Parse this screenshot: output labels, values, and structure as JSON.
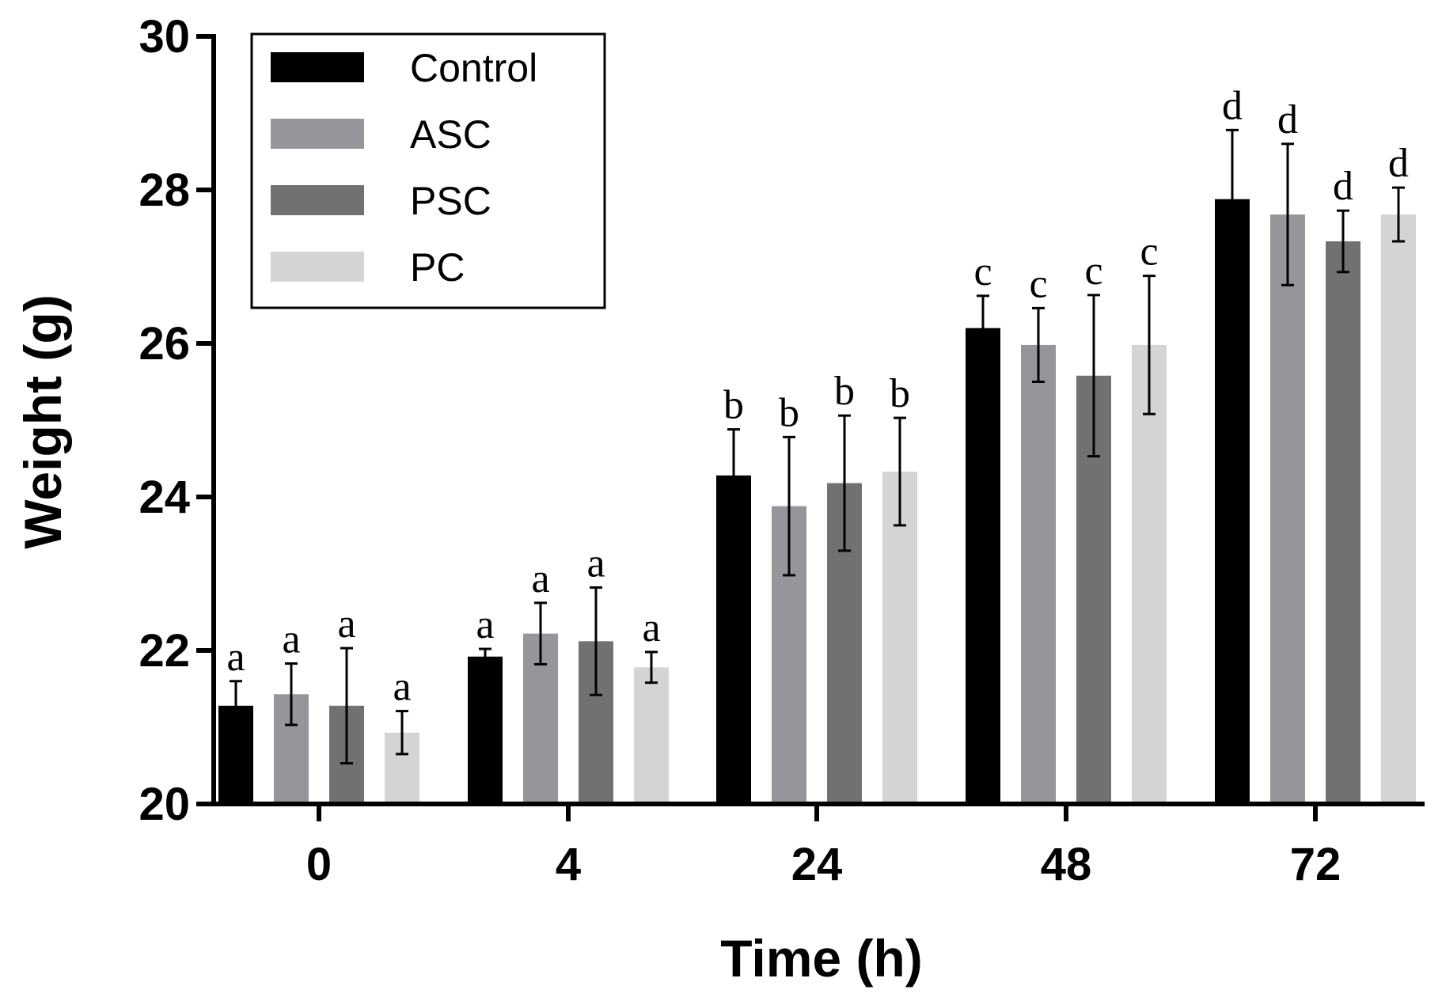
{
  "chart_data": {
    "type": "bar",
    "xlabel": "Time (h)",
    "ylabel": "Weight (g)",
    "ylim": [
      20,
      30
    ],
    "yticks": [
      20,
      22,
      24,
      26,
      28,
      30
    ],
    "categories": [
      "0",
      "4",
      "24",
      "48",
      "72"
    ],
    "legend_position": "top-left",
    "grid": false,
    "series": [
      {
        "name": "Control",
        "color": "#000000",
        "values": [
          21.28,
          21.92,
          24.28,
          26.2,
          27.88
        ],
        "errors": [
          0.32,
          0.1,
          0.6,
          0.42,
          0.9
        ],
        "labels": [
          "a",
          "a",
          "b",
          "c",
          "d"
        ]
      },
      {
        "name": "ASC",
        "color": "#96969a",
        "values": [
          21.43,
          22.22,
          23.88,
          25.98,
          27.68
        ],
        "errors": [
          0.4,
          0.4,
          0.9,
          0.48,
          0.92
        ],
        "labels": [
          "a",
          "a",
          "b",
          "c",
          "d"
        ]
      },
      {
        "name": "PSC",
        "color": "#717171",
        "values": [
          21.28,
          22.12,
          24.18,
          25.58,
          27.33
        ],
        "errors": [
          0.75,
          0.7,
          0.88,
          1.05,
          0.4
        ],
        "labels": [
          "a",
          "a",
          "b",
          "c",
          "d"
        ]
      },
      {
        "name": "PC",
        "color": "#d4d4d4",
        "values": [
          20.93,
          21.78,
          24.33,
          25.98,
          27.68
        ],
        "errors": [
          0.28,
          0.2,
          0.7,
          0.9,
          0.35
        ],
        "labels": [
          "a",
          "a",
          "b",
          "c",
          "d"
        ]
      }
    ]
  }
}
